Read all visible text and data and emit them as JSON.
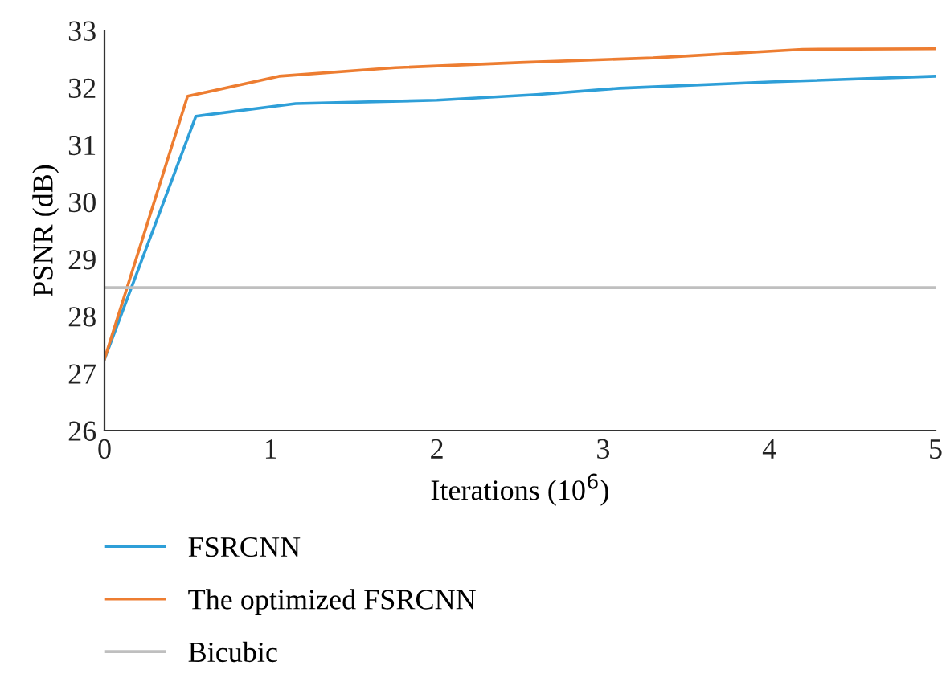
{
  "chart_data": {
    "type": "line",
    "xlabel": "Iterations (10$^{6}$)",
    "ylabel": "PSNR (dB)",
    "xlim": [
      0,
      5
    ],
    "xticks": [
      0,
      1,
      2,
      3,
      4,
      5
    ],
    "ylim": [
      26,
      33
    ],
    "yticks": [
      26,
      27,
      28,
      29,
      30,
      31,
      32,
      33
    ],
    "grid": false,
    "legend": "bottom",
    "marker": "none",
    "line_style": "solid",
    "series": [
      {
        "name": "FSRCNN",
        "color": "#2e9fd8",
        "x": [
          0,
          0.55,
          1.15,
          2,
          2.6,
          3.1,
          4,
          5
        ],
        "values": [
          27.25,
          31.5,
          31.72,
          31.78,
          31.88,
          31.99,
          32.1,
          32.2
        ]
      },
      {
        "name": "The optimized FSRCNN",
        "color": "#ed7d31",
        "x": [
          0,
          0.5,
          1.05,
          1.75,
          2.5,
          3.3,
          4.2,
          5
        ],
        "values": [
          27.25,
          31.85,
          32.2,
          32.35,
          32.44,
          32.52,
          32.67,
          32.68
        ]
      },
      {
        "name": "Bicubic",
        "color": "#bfbfbf",
        "x": [
          0,
          5
        ],
        "values": [
          28.5,
          28.5
        ]
      }
    ]
  }
}
